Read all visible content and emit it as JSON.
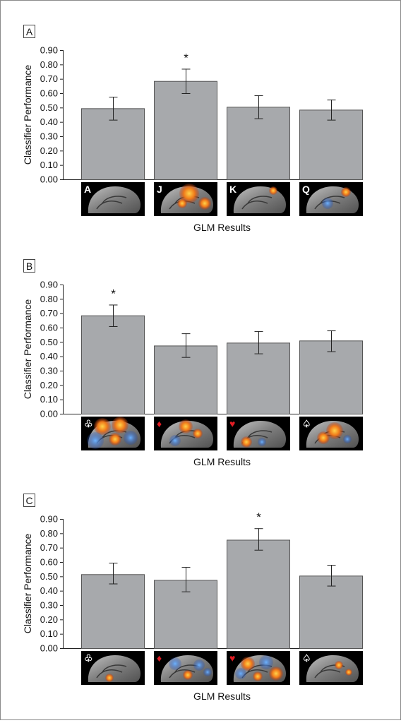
{
  "colors": {
    "bar_fill": "#a7a9ac",
    "bar_stroke": "#555555",
    "axis": "#222222",
    "text": "#111111",
    "thumb_bg": "#000000",
    "red_suit": "#e21d24",
    "white_suit": "#ffffff"
  },
  "chart_data": [
    {
      "type": "bar",
      "panel_label": "A",
      "xlabel": "GLM Results",
      "ylabel": "Classifier Performance",
      "ylim": [
        0,
        0.9
      ],
      "yticks": [
        "0.00",
        "0.10",
        "0.20",
        "0.30",
        "0.40",
        "0.50",
        "0.60",
        "0.70",
        "0.80",
        "0.90"
      ],
      "categories": [
        "A",
        "J",
        "K",
        "Q"
      ],
      "category_icons": [
        "letter-a-icon",
        "letter-j-icon",
        "letter-k-icon",
        "letter-q-icon"
      ],
      "icon_colors": [
        "#ffffff",
        "#ffffff",
        "#ffffff",
        "#ffffff"
      ],
      "values": [
        0.495,
        0.685,
        0.505,
        0.485
      ],
      "error_low": [
        0.415,
        0.6,
        0.425,
        0.415
      ],
      "error_high": [
        0.575,
        0.77,
        0.585,
        0.555
      ],
      "significance": [
        "",
        "*",
        "",
        ""
      ],
      "thumbnail_images": [
        "sagittal-brain-scan",
        "sagittal-brain-scan",
        "sagittal-brain-scan",
        "sagittal-brain-scan"
      ]
    },
    {
      "type": "bar",
      "panel_label": "B",
      "xlabel": "GLM Results",
      "ylabel": "Classifier Performance",
      "ylim": [
        0,
        0.9
      ],
      "yticks": [
        "0.00",
        "0.10",
        "0.20",
        "0.30",
        "0.40",
        "0.50",
        "0.60",
        "0.70",
        "0.80",
        "0.90"
      ],
      "categories": [
        "♧",
        "♦",
        "♥",
        "♤"
      ],
      "category_icons": [
        "club-icon",
        "diamond-icon",
        "heart-icon",
        "spade-icon"
      ],
      "icon_colors": [
        "#ffffff",
        "#e21d24",
        "#e21d24",
        "#ffffff"
      ],
      "values": [
        0.685,
        0.475,
        0.495,
        0.51
      ],
      "error_low": [
        0.61,
        0.395,
        0.42,
        0.435
      ],
      "error_high": [
        0.76,
        0.56,
        0.575,
        0.58
      ],
      "significance": [
        "*",
        "",
        "",
        ""
      ],
      "thumbnail_images": [
        "sagittal-brain-scan",
        "sagittal-brain-scan",
        "sagittal-brain-scan",
        "sagittal-brain-scan"
      ]
    },
    {
      "type": "bar",
      "panel_label": "C",
      "xlabel": "GLM Results",
      "ylabel": "Classifier Performance",
      "ylim": [
        0,
        0.9
      ],
      "yticks": [
        "0.00",
        "0.10",
        "0.20",
        "0.30",
        "0.40",
        "0.50",
        "0.60",
        "0.70",
        "0.80",
        "0.90"
      ],
      "categories": [
        "♧",
        "♦",
        "♥",
        "♤"
      ],
      "category_icons": [
        "club-icon",
        "diamond-icon",
        "heart-icon",
        "spade-icon"
      ],
      "icon_colors": [
        "#ffffff",
        "#e21d24",
        "#e21d24",
        "#ffffff"
      ],
      "values": [
        0.515,
        0.475,
        0.755,
        0.505
      ],
      "error_low": [
        0.45,
        0.395,
        0.685,
        0.435
      ],
      "error_high": [
        0.595,
        0.565,
        0.835,
        0.58
      ],
      "significance": [
        "",
        "",
        "*",
        ""
      ],
      "thumbnail_images": [
        "sagittal-brain-scan",
        "sagittal-brain-scan",
        "sagittal-brain-scan",
        "sagittal-brain-scan"
      ]
    }
  ]
}
